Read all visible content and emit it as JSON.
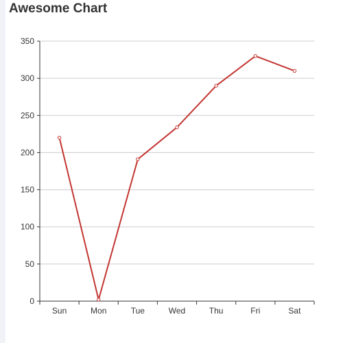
{
  "chart_data": {
    "type": "line",
    "title": "Awesome Chart",
    "categories": [
      "Sun",
      "Mon",
      "Tue",
      "Wed",
      "Thu",
      "Fri",
      "Sat"
    ],
    "series": [
      {
        "values": [
          220,
          2,
          191,
          234,
          290,
          330,
          310
        ]
      }
    ],
    "ylim": [
      0,
      350
    ],
    "yticks": [
      0,
      50,
      100,
      150,
      200,
      250,
      300,
      350
    ],
    "grid": true,
    "xlabel": "",
    "ylabel": "",
    "colors": {
      "line": "#c23531",
      "grid": "#cccccc",
      "axis": "#333333"
    }
  }
}
